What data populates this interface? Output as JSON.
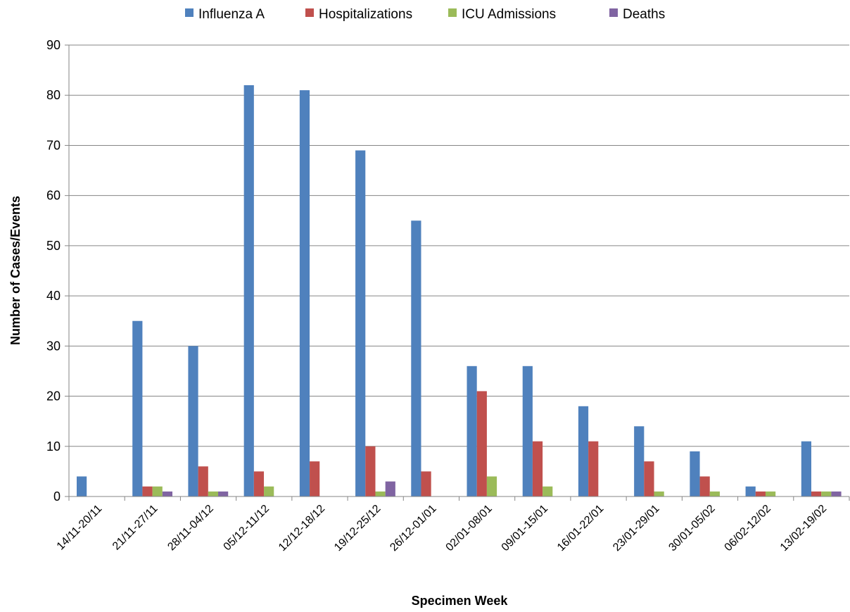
{
  "chart_data": {
    "type": "bar",
    "title": "",
    "xlabel": "Specimen Week",
    "ylabel": "Number of Cases/Events",
    "ylim": [
      0,
      90
    ],
    "yticks": [
      0,
      10,
      20,
      30,
      40,
      50,
      60,
      70,
      80,
      90
    ],
    "grid": "horizontal",
    "legend_position": "top",
    "categories": [
      "14/11-20/11",
      "21/11-27/11",
      "28/11-04/12",
      "05/12-11/12",
      "12/12-18/12",
      "19/12-25/12",
      "26/12-01/01",
      "02/01-08/01",
      "09/01-15/01",
      "16/01-22/01",
      "23/01-29/01",
      "30/01-05/02",
      "06/02-12/02",
      "13/02-19/02"
    ],
    "series": [
      {
        "name": "Influenza A",
        "color": "#4F81BD",
        "values": [
          4,
          35,
          30,
          82,
          81,
          69,
          55,
          26,
          26,
          18,
          14,
          9,
          2,
          11
        ]
      },
      {
        "name": "Hospitalizations",
        "color": "#C0504D",
        "values": [
          0,
          2,
          6,
          5,
          7,
          10,
          5,
          21,
          11,
          11,
          7,
          4,
          1,
          1
        ]
      },
      {
        "name": "ICU Admissions",
        "color": "#9BBB59",
        "values": [
          0,
          2,
          1,
          2,
          0,
          1,
          0,
          4,
          2,
          0,
          1,
          1,
          1,
          1
        ]
      },
      {
        "name": "Deaths",
        "color": "#8064A2",
        "values": [
          0,
          1,
          1,
          0,
          0,
          3,
          0,
          0,
          0,
          0,
          0,
          0,
          0,
          1
        ]
      }
    ]
  }
}
